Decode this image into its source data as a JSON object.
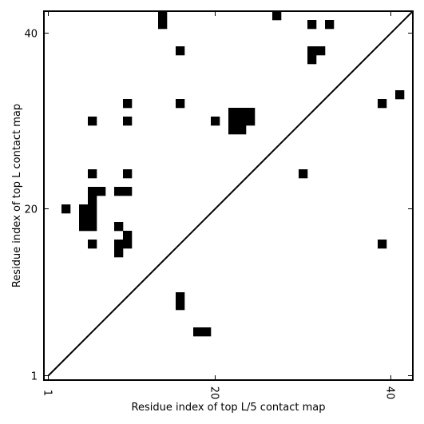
{
  "chart_data": {
    "type": "heatmap",
    "xlabel": "Residue index of top L/5 contact map",
    "ylabel": "Residue index of top L contact map",
    "xlim": [
      0.5,
      42.5
    ],
    "ylim": [
      0.5,
      42.5
    ],
    "x_ticks": [
      1,
      20,
      40
    ],
    "y_ticks": [
      1,
      20,
      40
    ],
    "diagonal": true,
    "colors": {
      "contact": "#000000",
      "background": "#ffffff"
    },
    "cells": [
      [
        14,
        41
      ],
      [
        14,
        42
      ],
      [
        27,
        42
      ],
      [
        31,
        41
      ],
      [
        33,
        41
      ],
      [
        16,
        38
      ],
      [
        31,
        38
      ],
      [
        32,
        38
      ],
      [
        31,
        37
      ],
      [
        10,
        32
      ],
      [
        16,
        32
      ],
      [
        39,
        32
      ],
      [
        41,
        33
      ],
      [
        6,
        30
      ],
      [
        10,
        30
      ],
      [
        20,
        30
      ],
      [
        22,
        31
      ],
      [
        23,
        31
      ],
      [
        24,
        31
      ],
      [
        22,
        30
      ],
      [
        23,
        30
      ],
      [
        24,
        30
      ],
      [
        22,
        29
      ],
      [
        23,
        29
      ],
      [
        6,
        24
      ],
      [
        10,
        24
      ],
      [
        30,
        24
      ],
      [
        6,
        22
      ],
      [
        7,
        22
      ],
      [
        9,
        22
      ],
      [
        10,
        22
      ],
      [
        6,
        21
      ],
      [
        3,
        20
      ],
      [
        5,
        20
      ],
      [
        6,
        20
      ],
      [
        5,
        19
      ],
      [
        6,
        19
      ],
      [
        5,
        18
      ],
      [
        6,
        18
      ],
      [
        9,
        18
      ],
      [
        10,
        17
      ],
      [
        6,
        16
      ],
      [
        9,
        16
      ],
      [
        10,
        16
      ],
      [
        39,
        16
      ],
      [
        9,
        15
      ],
      [
        16,
        10
      ],
      [
        16,
        9
      ],
      [
        18,
        6
      ],
      [
        19,
        6
      ]
    ]
  }
}
